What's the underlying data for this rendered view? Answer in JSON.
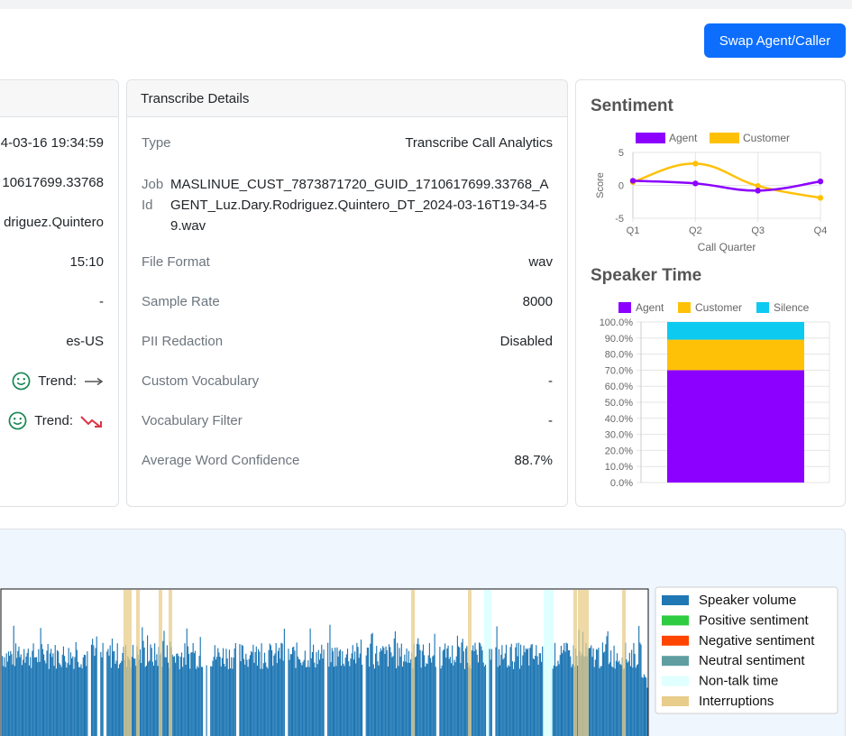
{
  "header": {
    "swap_button": "Swap Agent/Caller"
  },
  "call_details": {
    "rows": [
      "4-03-16 19:34:59",
      "10617699.33768",
      "driguez.Quintero",
      "15:10",
      "-",
      "es-US"
    ],
    "trend_label": "Trend:",
    "trend_agent_icon": "arrow-right-icon",
    "trend_customer_icon": "trend-down-icon"
  },
  "transcribe_details": {
    "title": "Transcribe Details",
    "type": {
      "label": "Type",
      "value": "Transcribe Call Analytics"
    },
    "job_id": {
      "label": "Job Id",
      "value": "MASLINUE_CUST_7873871720_GUID_1710617699.33768_AGENT_Luz.Dary.Rodriguez.Quintero_DT_2024-03-16T19-34-59.wav"
    },
    "file_format": {
      "label": "File Format",
      "value": "wav"
    },
    "sample_rate": {
      "label": "Sample Rate",
      "value": "8000"
    },
    "pii_redaction": {
      "label": "PII Redaction",
      "value": "Disabled"
    },
    "custom_vocabulary": {
      "label": "Custom Vocabulary",
      "value": "-"
    },
    "vocabulary_filter": {
      "label": "Vocabulary Filter",
      "value": "-"
    },
    "avg_word_confidence": {
      "label": "Average Word Confidence",
      "value": "88.7%"
    }
  },
  "chart_data": [
    {
      "type": "line",
      "title": "Sentiment",
      "xlabel": "Call Quarter",
      "ylabel": "Score",
      "categories": [
        "Q1",
        "Q2",
        "Q3",
        "Q4"
      ],
      "ylim": [
        -5,
        5
      ],
      "yticks": [
        "5",
        "0",
        "-5"
      ],
      "legend": "top",
      "series": [
        {
          "name": "Agent",
          "color": "#8b00ff",
          "values": [
            0.7,
            0.3,
            -0.8,
            0.6
          ]
        },
        {
          "name": "Customer",
          "color": "#ffc107",
          "values": [
            0.5,
            3.3,
            -0.1,
            -1.9
          ]
        }
      ]
    },
    {
      "type": "bar",
      "title": "Speaker Time",
      "stacked": true,
      "ylim": [
        0,
        100
      ],
      "yticks": [
        "100.0%",
        "90.0%",
        "80.0%",
        "70.0%",
        "60.0%",
        "50.0%",
        "40.0%",
        "30.0%",
        "20.0%",
        "10.0%",
        "0.0%"
      ],
      "legend": "top",
      "series": [
        {
          "name": "Agent",
          "color": "#8b00ff",
          "values": [
            70
          ]
        },
        {
          "name": "Customer",
          "color": "#ffc107",
          "values": [
            19
          ]
        },
        {
          "name": "Silence",
          "color": "#0dcaf0",
          "values": [
            11
          ]
        }
      ]
    }
  ],
  "waveform": {
    "legend": [
      {
        "label": "Speaker volume",
        "color": "#1f77b4"
      },
      {
        "label": "Positive sentiment",
        "color": "#2ecc40"
      },
      {
        "label": "Negative sentiment",
        "color": "#ff4500"
      },
      {
        "label": "Neutral sentiment",
        "color": "#5f9ea0"
      },
      {
        "label": "Non-talk time",
        "color": "#e0ffff"
      },
      {
        "label": "Interruptions",
        "color": "#e8cc8a"
      }
    ]
  }
}
